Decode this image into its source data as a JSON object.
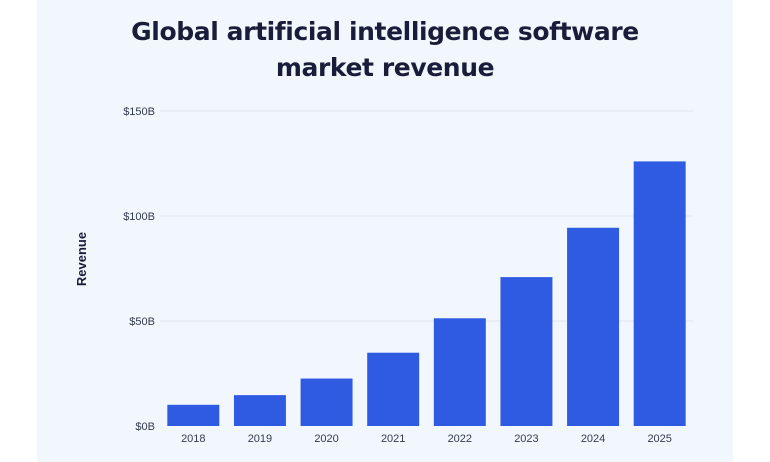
{
  "title_line1": "Global artificial intelligence software",
  "title_line2": "market revenue",
  "colors": {
    "bar": "#2f5be3",
    "grid": "#dfe5ee",
    "background": "#f2f7fd",
    "title": "#1a1d3a"
  },
  "chart_data": {
    "type": "bar",
    "title": "Global artificial intelligence software market revenue",
    "xlabel": "",
    "ylabel": "Revenue",
    "categories": [
      "2018",
      "2019",
      "2020",
      "2021",
      "2022",
      "2023",
      "2024",
      "2025"
    ],
    "values": [
      10.1,
      14.7,
      22.6,
      34.9,
      51.3,
      70.9,
      94.4,
      126.0
    ],
    "unit": "billion USD",
    "ylim": [
      0,
      150
    ],
    "yticks": [
      0,
      50,
      100,
      150
    ],
    "ytick_labels": [
      "$0B",
      "$50B",
      "$100B",
      "$150B"
    ],
    "grid": true,
    "legend": "none"
  }
}
